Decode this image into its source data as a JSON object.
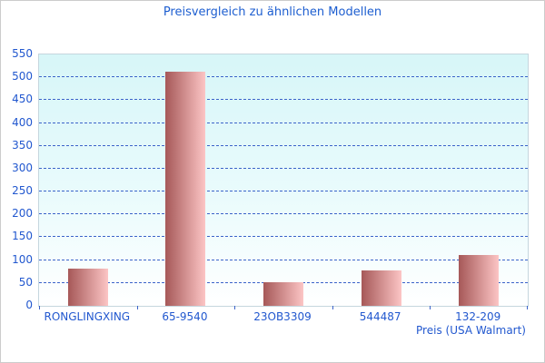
{
  "window": {
    "background": "#ffffff",
    "border_color": "#cccccc"
  },
  "chart_data": {
    "type": "bar",
    "title": "Preisvergleich zu ähnlichen Modellen",
    "categories": [
      "RONGLINGXING",
      "65-9540",
      "23OB3309",
      "544487",
      "132-209"
    ],
    "values": [
      81,
      512,
      52,
      77,
      111
    ],
    "xlabel": "Preis (USA Walmart)",
    "ylabel": "",
    "ylim": [
      0,
      550
    ],
    "ytick_step": 50,
    "yticks": [
      0,
      50,
      100,
      150,
      200,
      250,
      300,
      350,
      400,
      450,
      500,
      550
    ],
    "grid": "horizontal dashed",
    "legend_position": "none",
    "colors": {
      "title_text": "#1d5ed0",
      "axis_text": "#2258cf",
      "gridline": "#3b63c9",
      "plot_border": "#c5d6de",
      "plot_bg_top": "#d7f6f8",
      "plot_bg_mid": "#e9fbfc",
      "plot_bg_bottom": "#ffffff",
      "bar_gradient_left": "#a65858",
      "bar_gradient_right": "#fcc5c5",
      "canvas_border": "#cccccc"
    }
  }
}
